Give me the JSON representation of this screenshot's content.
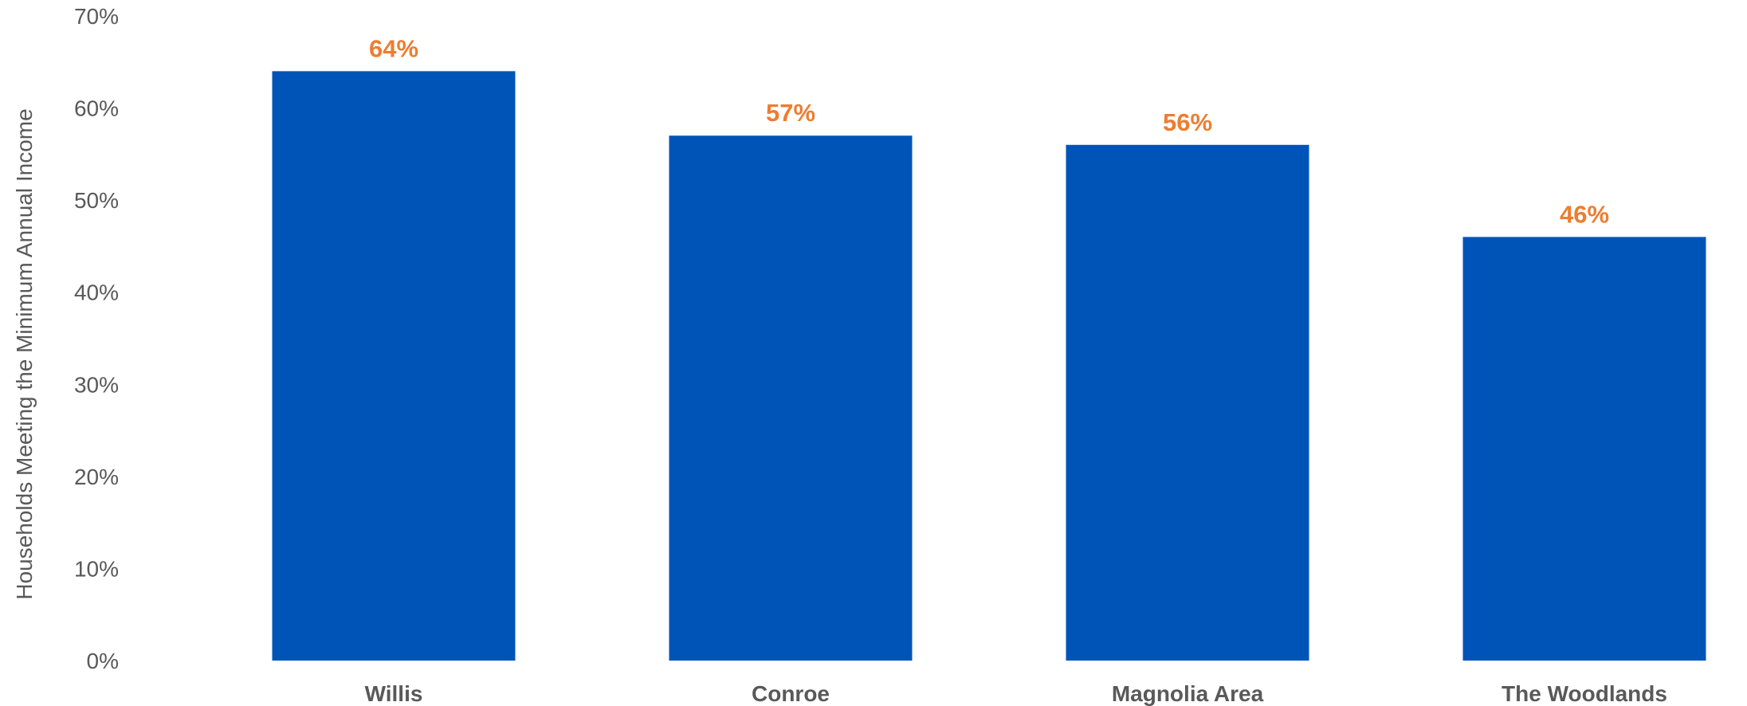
{
  "chart_data": {
    "type": "bar",
    "categories": [
      "Willis",
      "Conroe",
      "Magnolia Area",
      "The Woodlands"
    ],
    "values": [
      64,
      57,
      56,
      46
    ],
    "data_labels": [
      "64%",
      "57%",
      "56%",
      "46%"
    ],
    "ylabel": "Households Meeting the Minimum Annual Income",
    "xlabel": "",
    "ylim": [
      0,
      70
    ],
    "yticks": [
      0,
      10,
      20,
      30,
      40,
      50,
      60,
      70
    ],
    "ytick_labels": [
      "0%",
      "10%",
      "20%",
      "30%",
      "40%",
      "50%",
      "60%",
      "70%"
    ],
    "grid": false,
    "legend": "none",
    "bar_color": "#0054B8",
    "label_color": "#ED7D31",
    "text_color": "#595959"
  }
}
